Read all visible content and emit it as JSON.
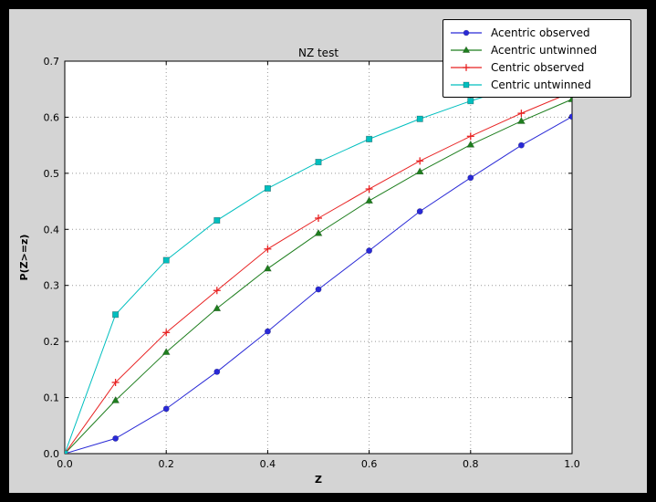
{
  "window": {
    "background_color": "#000000"
  },
  "figure": {
    "background_color": "#d4d4d4"
  },
  "chart_data": {
    "type": "line",
    "title": "NZ test",
    "xlabel": "Z",
    "ylabel": "P(Z>=z)",
    "xlim": [
      0.0,
      1.0
    ],
    "ylim": [
      0.0,
      0.7
    ],
    "grid": true,
    "legend_position": "upper right",
    "xticks": [
      0.0,
      0.2,
      0.4,
      0.6,
      0.8,
      1.0
    ],
    "xtick_labels": [
      "0.0",
      "0.2",
      "0.4",
      "0.6",
      "0.8",
      "1.0"
    ],
    "yticks": [
      0.0,
      0.1,
      0.2,
      0.3,
      0.4,
      0.5,
      0.6,
      0.7
    ],
    "ytick_labels": [
      "0.0",
      "0.1",
      "0.2",
      "0.3",
      "0.4",
      "0.5",
      "0.6",
      "0.7"
    ],
    "x": [
      0.0,
      0.1,
      0.2,
      0.3,
      0.4,
      0.5,
      0.6,
      0.7,
      0.8,
      0.9,
      1.0
    ],
    "series": [
      {
        "name": "Acentric observed",
        "color": "#2929d6",
        "marker": "circle",
        "values": [
          0.0,
          0.027,
          0.08,
          0.146,
          0.218,
          0.293,
          0.362,
          0.432,
          0.492,
          0.55,
          0.601
        ]
      },
      {
        "name": "Acentric untwinned",
        "color": "#1e7e1e",
        "marker": "triangle",
        "values": [
          0.0,
          0.095,
          0.181,
          0.259,
          0.33,
          0.393,
          0.451,
          0.503,
          0.551,
          0.593,
          0.632
        ]
      },
      {
        "name": "Centric observed",
        "color": "#e82222",
        "marker": "plus",
        "values": [
          0.0,
          0.127,
          0.216,
          0.291,
          0.365,
          0.42,
          0.472,
          0.522,
          0.566,
          0.607,
          0.645
        ]
      },
      {
        "name": "Centric untwinned",
        "color": "#00bfbf",
        "marker": "square",
        "values": [
          0.0,
          0.248,
          0.345,
          0.416,
          0.473,
          0.52,
          0.561,
          0.597,
          0.629,
          0.657,
          0.683
        ]
      }
    ]
  }
}
